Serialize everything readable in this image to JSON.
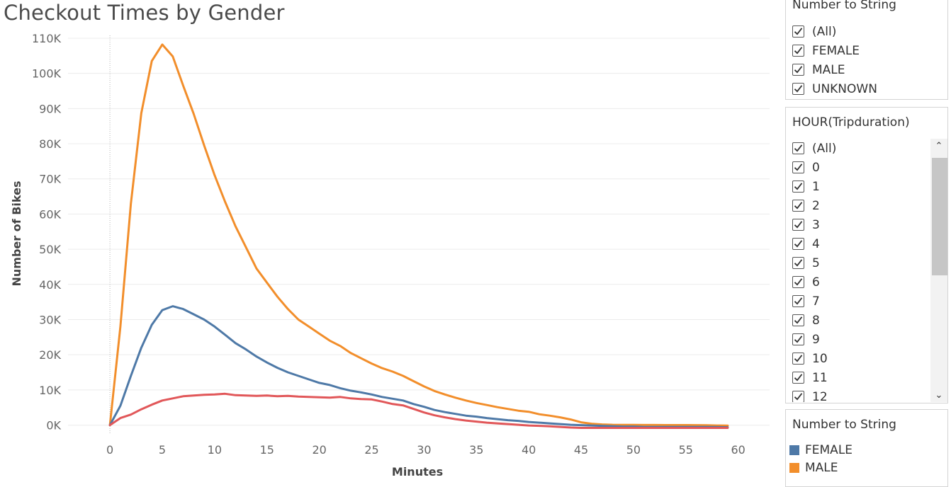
{
  "chart_data": {
    "type": "line",
    "title": "Checkout Times by Gender",
    "xlabel": "Minutes",
    "ylabel": "Number of Bikes",
    "xlim": [
      -4,
      63
    ],
    "ylim": [
      -2300,
      112000
    ],
    "x_ticks": [
      0,
      5,
      10,
      15,
      20,
      25,
      30,
      35,
      40,
      45,
      50,
      55,
      60
    ],
    "x_tick_labels": [
      "0",
      "5",
      "10",
      "15",
      "20",
      "25",
      "30",
      "35",
      "40",
      "45",
      "50",
      "55",
      "60"
    ],
    "y_ticks": [
      0,
      10000,
      20000,
      30000,
      40000,
      50000,
      60000,
      70000,
      80000,
      90000,
      100000,
      110000
    ],
    "y_tick_labels": [
      "0K",
      "10K",
      "20K",
      "30K",
      "40K",
      "50K",
      "60K",
      "70K",
      "80K",
      "90K",
      "100K",
      "110K"
    ],
    "grid": true,
    "x": [
      0,
      1,
      2,
      3,
      4,
      5,
      6,
      7,
      8,
      9,
      10,
      11,
      12,
      13,
      14,
      15,
      16,
      17,
      18,
      19,
      20,
      21,
      22,
      23,
      24,
      25,
      26,
      27,
      28,
      29,
      30,
      31,
      32,
      33,
      34,
      35,
      36,
      37,
      38,
      39,
      40,
      41,
      42,
      43,
      44,
      45,
      46,
      47,
      48,
      49,
      50,
      51,
      52,
      53,
      54,
      55,
      56,
      57,
      58,
      59
    ],
    "series": [
      {
        "name": "MALE",
        "color": "#F28E2B",
        "values": [
          0,
          28000,
          63000,
          88700,
          103500,
          108200,
          104800,
          96500,
          88500,
          79500,
          71000,
          63500,
          56500,
          50500,
          44500,
          40500,
          36500,
          33000,
          30000,
          28000,
          26000,
          24000,
          22500,
          20500,
          19000,
          17500,
          16200,
          15200,
          14000,
          12500,
          11000,
          9700,
          8700,
          7800,
          7000,
          6300,
          5700,
          5100,
          4600,
          4100,
          3800,
          3100,
          2700,
          2200,
          1600,
          800,
          400,
          200,
          100,
          80,
          60,
          40,
          30,
          20,
          10,
          5,
          0,
          -50,
          -100,
          -150
        ]
      },
      {
        "name": "FEMALE",
        "color": "#4E79A7",
        "values": [
          0,
          5500,
          14000,
          22000,
          28500,
          32700,
          33800,
          33000,
          31500,
          30000,
          28000,
          25700,
          23300,
          21500,
          19500,
          17800,
          16300,
          15000,
          14000,
          13000,
          12000,
          11400,
          10500,
          9800,
          9300,
          8700,
          8000,
          7500,
          7000,
          6000,
          5200,
          4300,
          3700,
          3200,
          2700,
          2400,
          2000,
          1700,
          1400,
          1200,
          900,
          700,
          500,
          300,
          100,
          0,
          -100,
          -200,
          -300,
          -400,
          -400,
          -500,
          -500,
          -500,
          -500,
          -500,
          -500,
          -500,
          -550,
          -600
        ]
      },
      {
        "name": "UNKNOWN",
        "color": "#E15759",
        "values": [
          0,
          2000,
          3000,
          4500,
          5800,
          7000,
          7600,
          8200,
          8400,
          8600,
          8700,
          8900,
          8500,
          8400,
          8300,
          8400,
          8200,
          8300,
          8100,
          8000,
          7900,
          7800,
          8000,
          7600,
          7400,
          7300,
          6700,
          6000,
          5600,
          4600,
          3600,
          2800,
          2200,
          1700,
          1300,
          1000,
          700,
          500,
          300,
          100,
          -100,
          -200,
          -350,
          -500,
          -700,
          -800,
          -800,
          -800,
          -800,
          -800,
          -800,
          -800,
          -800,
          -800,
          -800,
          -800,
          -800,
          -800,
          -800,
          -800
        ]
      }
    ]
  },
  "filter_gender": {
    "title": "Number to String",
    "items": [
      "(All)",
      "FEMALE",
      "MALE",
      "UNKNOWN"
    ]
  },
  "filter_hour": {
    "title": "HOUR(Tripduration)",
    "items": [
      "(All)",
      "0",
      "1",
      "2",
      "3",
      "4",
      "5",
      "6",
      "7",
      "8",
      "9",
      "10",
      "11",
      "12"
    ],
    "scroll_up_glyph": "⌃",
    "scroll_down_glyph": "⌄"
  },
  "legend": {
    "title": "Number to String",
    "items": [
      {
        "label": "FEMALE",
        "color": "#4E79A7"
      },
      {
        "label": "MALE",
        "color": "#F28E2B"
      }
    ]
  },
  "icons": {
    "checkbox": "check-icon"
  }
}
